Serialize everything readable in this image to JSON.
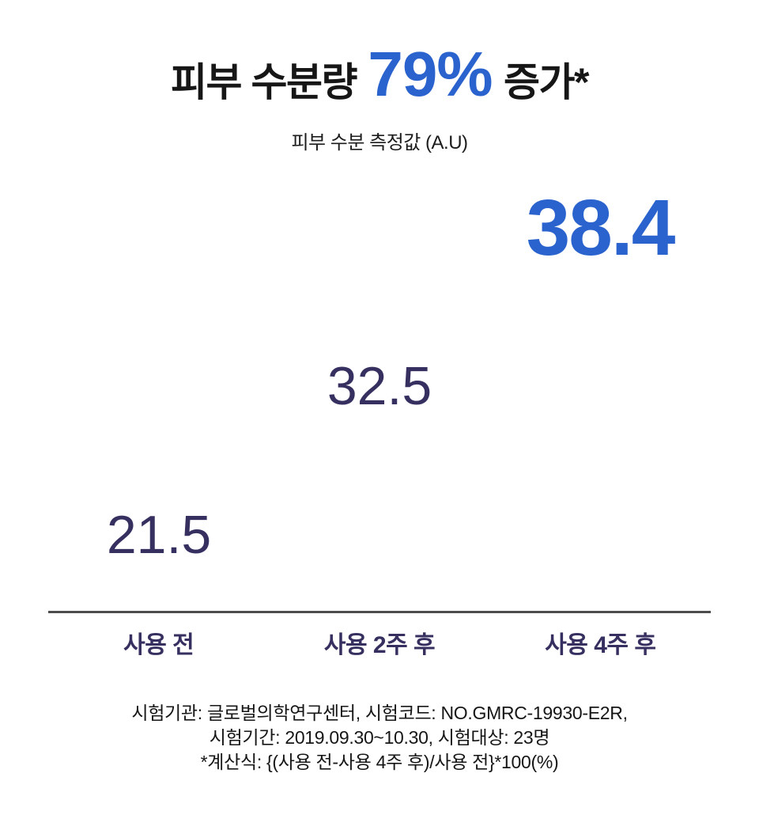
{
  "header": {
    "title_prefix": "피부 수분량",
    "title_highlight": "79%",
    "title_suffix": "증가*",
    "subtitle": "피부 수분 측정값 (A.U)"
  },
  "chart_data": {
    "type": "scatter",
    "title": "피부 수분량 79% 증가*",
    "subtitle": "피부 수분 측정값 (A.U)",
    "ylabel": "피부 수분 측정값 (A.U)",
    "xlabel": "",
    "categories": [
      "사용 전",
      "사용 2주 후",
      "사용 4주 후"
    ],
    "values": [
      21.5,
      32.5,
      38.4
    ],
    "value_labels": [
      "21.5",
      "32.5",
      "38.4"
    ],
    "highlight_index": 2,
    "increase_percent": "79%",
    "legend": "none",
    "grid": "off",
    "baseline_axis": "bottom",
    "colors": {
      "accent_blue": "#2a63cd",
      "value_navy": "#363060",
      "axis_gray": "#4d4d4d",
      "title_black": "#161616"
    }
  },
  "footnote": {
    "lines": [
      "시험기관: 글로벌의학연구센터, 시험코드: NO.GMRC-19930-E2R,",
      "시험기간: 2019.09.30~10.30, 시험대상: 23명",
      "*계산식: {(사용 전-사용 4주 후)/사용 전}*100(%)"
    ]
  }
}
